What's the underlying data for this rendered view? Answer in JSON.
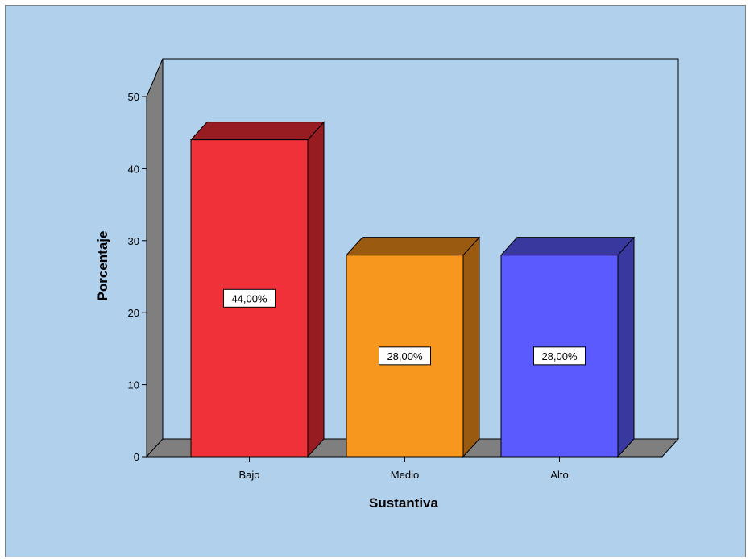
{
  "chart_data": {
    "type": "bar",
    "title": "",
    "xlabel": "Sustantiva",
    "ylabel": "Porcentaje",
    "categories": [
      "Bajo",
      "Medio",
      "Alto"
    ],
    "values": [
      44,
      28,
      28
    ],
    "data_labels": [
      "44,00%",
      "28,00%",
      "28,00%"
    ],
    "ylim": [
      0,
      50
    ],
    "yticks": [
      0,
      10,
      20,
      30,
      40,
      50
    ],
    "three_d": true,
    "grid": false,
    "legend": "none",
    "colors": {
      "background": "#b0d0ec",
      "bar_front": [
        "#f0313a",
        "#f8971e",
        "#5a5aff"
      ],
      "bar_top": [
        "#961c21",
        "#9a5a10",
        "#38389e"
      ],
      "bar_side": [
        "#961c21",
        "#9a5a10",
        "#38389e"
      ],
      "floor": "#7f7f7f",
      "wall_left": "#7f7f7f"
    }
  }
}
